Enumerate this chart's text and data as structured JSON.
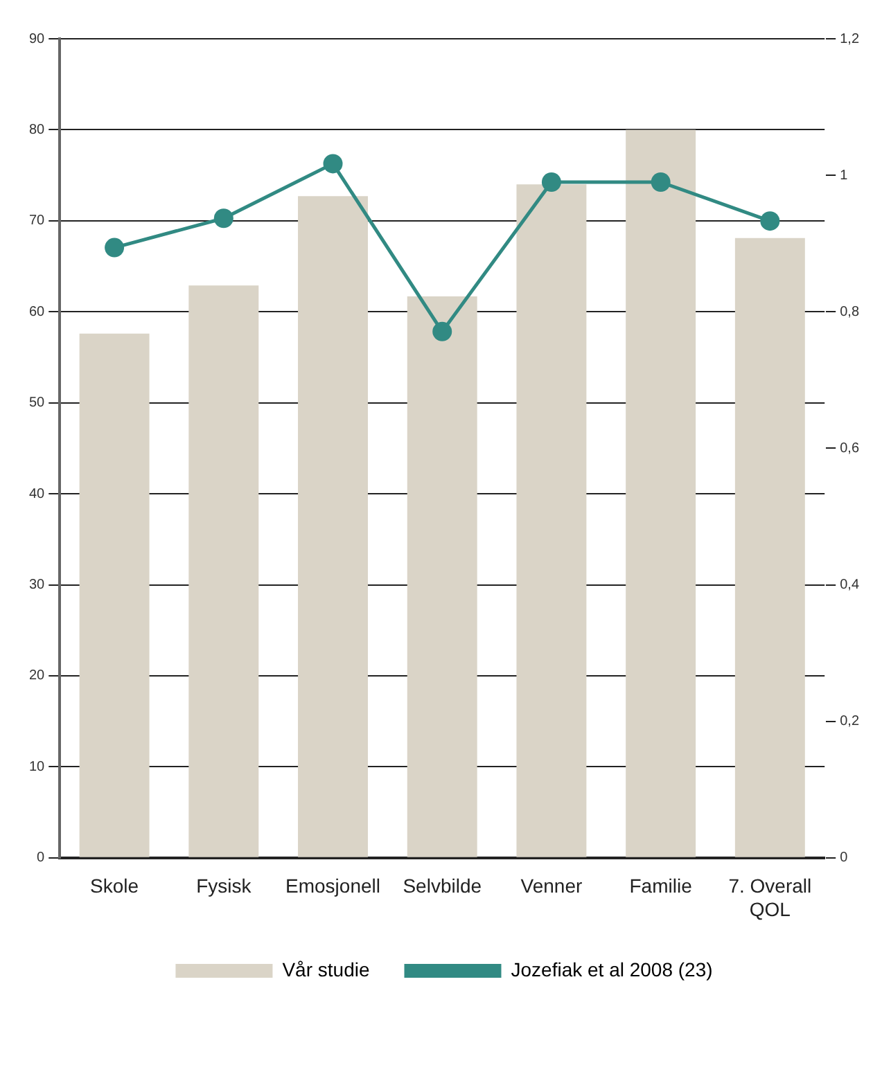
{
  "chart_data": {
    "type": "bar",
    "categories": [
      "Skole",
      "Fysisk",
      "Emosjonell",
      "Selvbilde",
      "Venner",
      "Familie",
      "7. Overall QOL"
    ],
    "series": [
      {
        "name": "Vår studie",
        "color": "#dad4c7",
        "values": [
          57.6,
          62.9,
          72.7,
          61.7,
          74.0,
          80.0,
          68.1
        ]
      },
      {
        "name": "Jozefiak et al 2008 (23)",
        "type": "line",
        "axis": "y2",
        "color": "#318a83",
        "marker": "circle",
        "values": [
          0.894,
          0.937,
          1.017,
          0.771,
          0.99,
          0.99,
          0.933
        ]
      }
    ],
    "ylim": [
      0,
      90
    ],
    "yticks": [
      0,
      10,
      20,
      30,
      40,
      50,
      60,
      70,
      80,
      90
    ],
    "y2lim": [
      0,
      1.2
    ],
    "y2ticks": [
      {
        "value": 0,
        "label": "0"
      },
      {
        "value": 0.2,
        "label": "0,2"
      },
      {
        "value": 0.4,
        "label": "0,4"
      },
      {
        "value": 0.6,
        "label": "0,6"
      },
      {
        "value": 0.8,
        "label": "0,8"
      },
      {
        "value": 1,
        "label": "1"
      },
      {
        "value": 1.2,
        "label": "1,2"
      }
    ],
    "grid": "y",
    "legend": "bottom"
  }
}
